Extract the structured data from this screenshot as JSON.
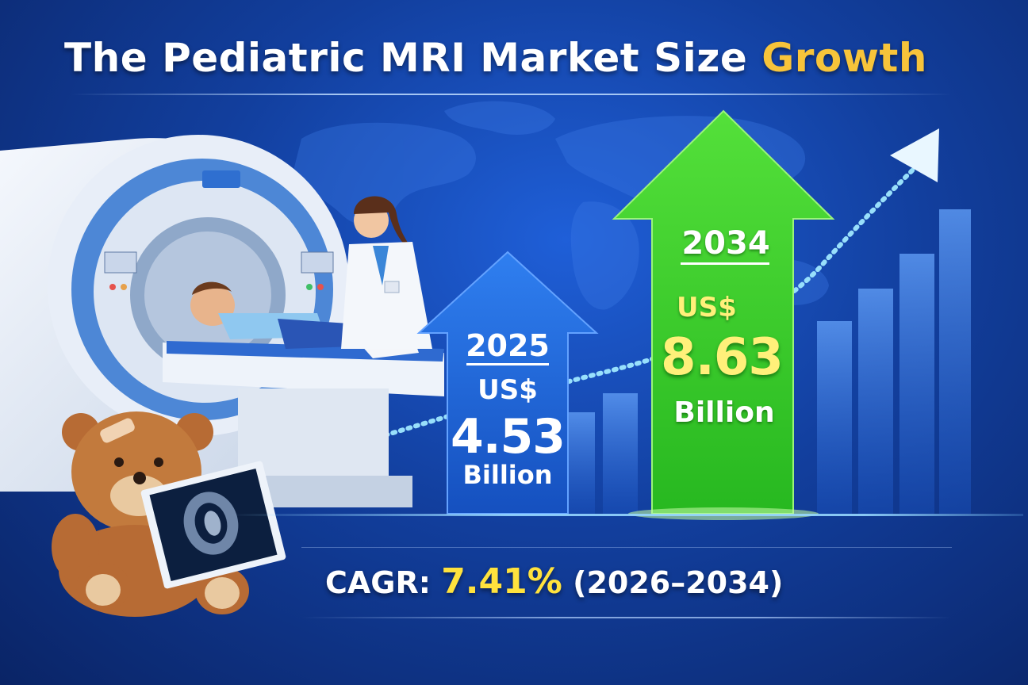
{
  "title": {
    "part1": "The Pediatric MRI Market Size",
    "part2": "Growth"
  },
  "values": {
    "start": {
      "year": "2025",
      "currency": "US$",
      "amount": "4.53",
      "unit": "Billion"
    },
    "end": {
      "year": "2034",
      "currency": "US$",
      "amount": "8.63",
      "unit": "Billion"
    }
  },
  "cagr": {
    "label": "CAGR:",
    "percent": "7.41%",
    "range": "(2026–2034)"
  },
  "colors": {
    "background": "#123f9e",
    "title_accent": "#f7c43a",
    "arrow_2025": "#1e6ad8",
    "arrow_2034": "#34c82a",
    "highlight": "#fff07a",
    "cagr_accent": "#ffe23d"
  },
  "icons": [
    "mri-scanner",
    "teddy-bear",
    "doctor",
    "brain-scan",
    "growth-arrow",
    "world-map"
  ]
}
